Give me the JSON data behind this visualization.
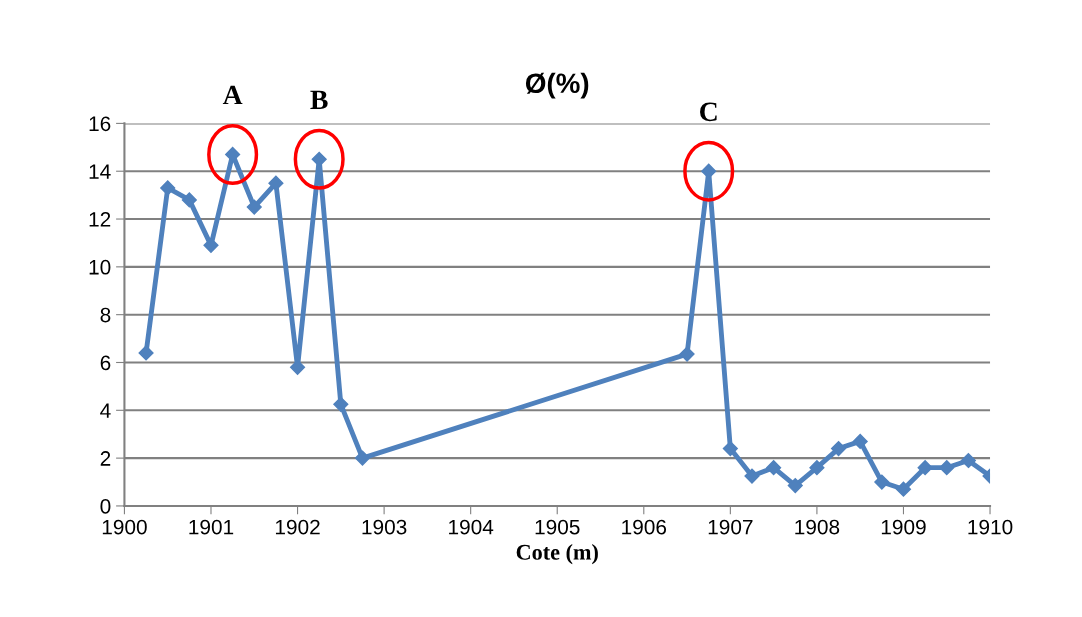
{
  "chart_data": {
    "type": "line",
    "title": "Ø(%)",
    "xlabel": "Cote (m)",
    "x": [
      1900.25,
      1900.5,
      1900.75,
      1901.0,
      1901.25,
      1901.5,
      1901.75,
      1902.0,
      1902.25,
      1902.5,
      1902.75,
      1906.5,
      1906.75,
      1907.0,
      1907.25,
      1907.5,
      1907.75,
      1908.0,
      1908.25,
      1908.5,
      1908.75,
      1909.0,
      1909.25,
      1909.5,
      1909.75,
      1910.0
    ],
    "series": [
      {
        "color": "#4f81bd",
        "values": [
          6.4,
          13.3,
          12.8,
          10.9,
          14.7,
          12.5,
          13.5,
          5.8,
          14.5,
          4.25,
          2.0,
          6.35,
          14.0,
          2.4,
          1.25,
          1.6,
          0.85,
          1.6,
          2.4,
          2.7,
          1.0,
          0.7,
          1.6,
          1.6,
          1.9,
          1.25
        ]
      }
    ],
    "xlim": [
      1900,
      1910
    ],
    "xticks": [
      1900,
      1901,
      1902,
      1903,
      1904,
      1905,
      1906,
      1907,
      1908,
      1909,
      1910
    ],
    "ylim": [
      0,
      16
    ],
    "yticks": [
      0,
      2,
      4,
      6,
      8,
      10,
      12,
      14,
      16
    ],
    "grid": "y",
    "legend": false,
    "marker": "diamond",
    "line_style": "solid",
    "annotations": [
      {
        "text": "A",
        "x": 1901.25,
        "y": 14.7
      },
      {
        "text": "B",
        "x": 1902.25,
        "y": 14.5
      },
      {
        "text": "C",
        "x": 1906.75,
        "y": 14.0
      }
    ]
  }
}
